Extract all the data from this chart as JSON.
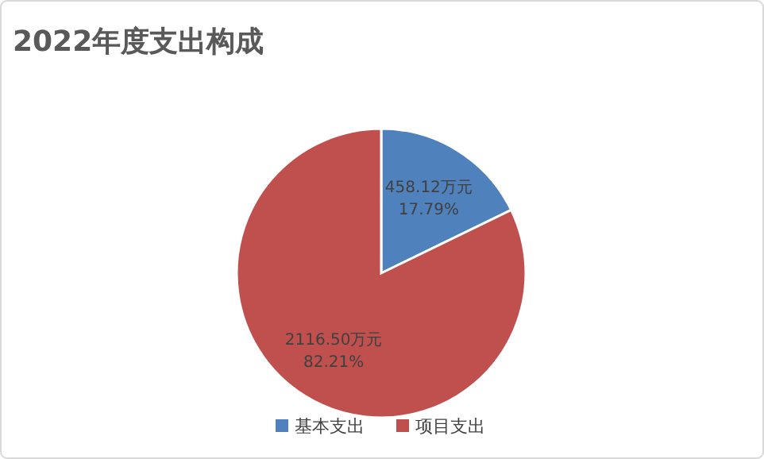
{
  "chart_data": {
    "type": "pie",
    "title": "2022年度支出构成",
    "categories": [
      "基本支出",
      "项目支出"
    ],
    "values": [
      458.12,
      2116.5
    ],
    "colors": [
      "#4f81bd",
      "#c0504d"
    ],
    "value_labels": [
      "458.12万元\n17.79%",
      "2116.50万元\n82.21%"
    ],
    "legend": "bottom"
  }
}
